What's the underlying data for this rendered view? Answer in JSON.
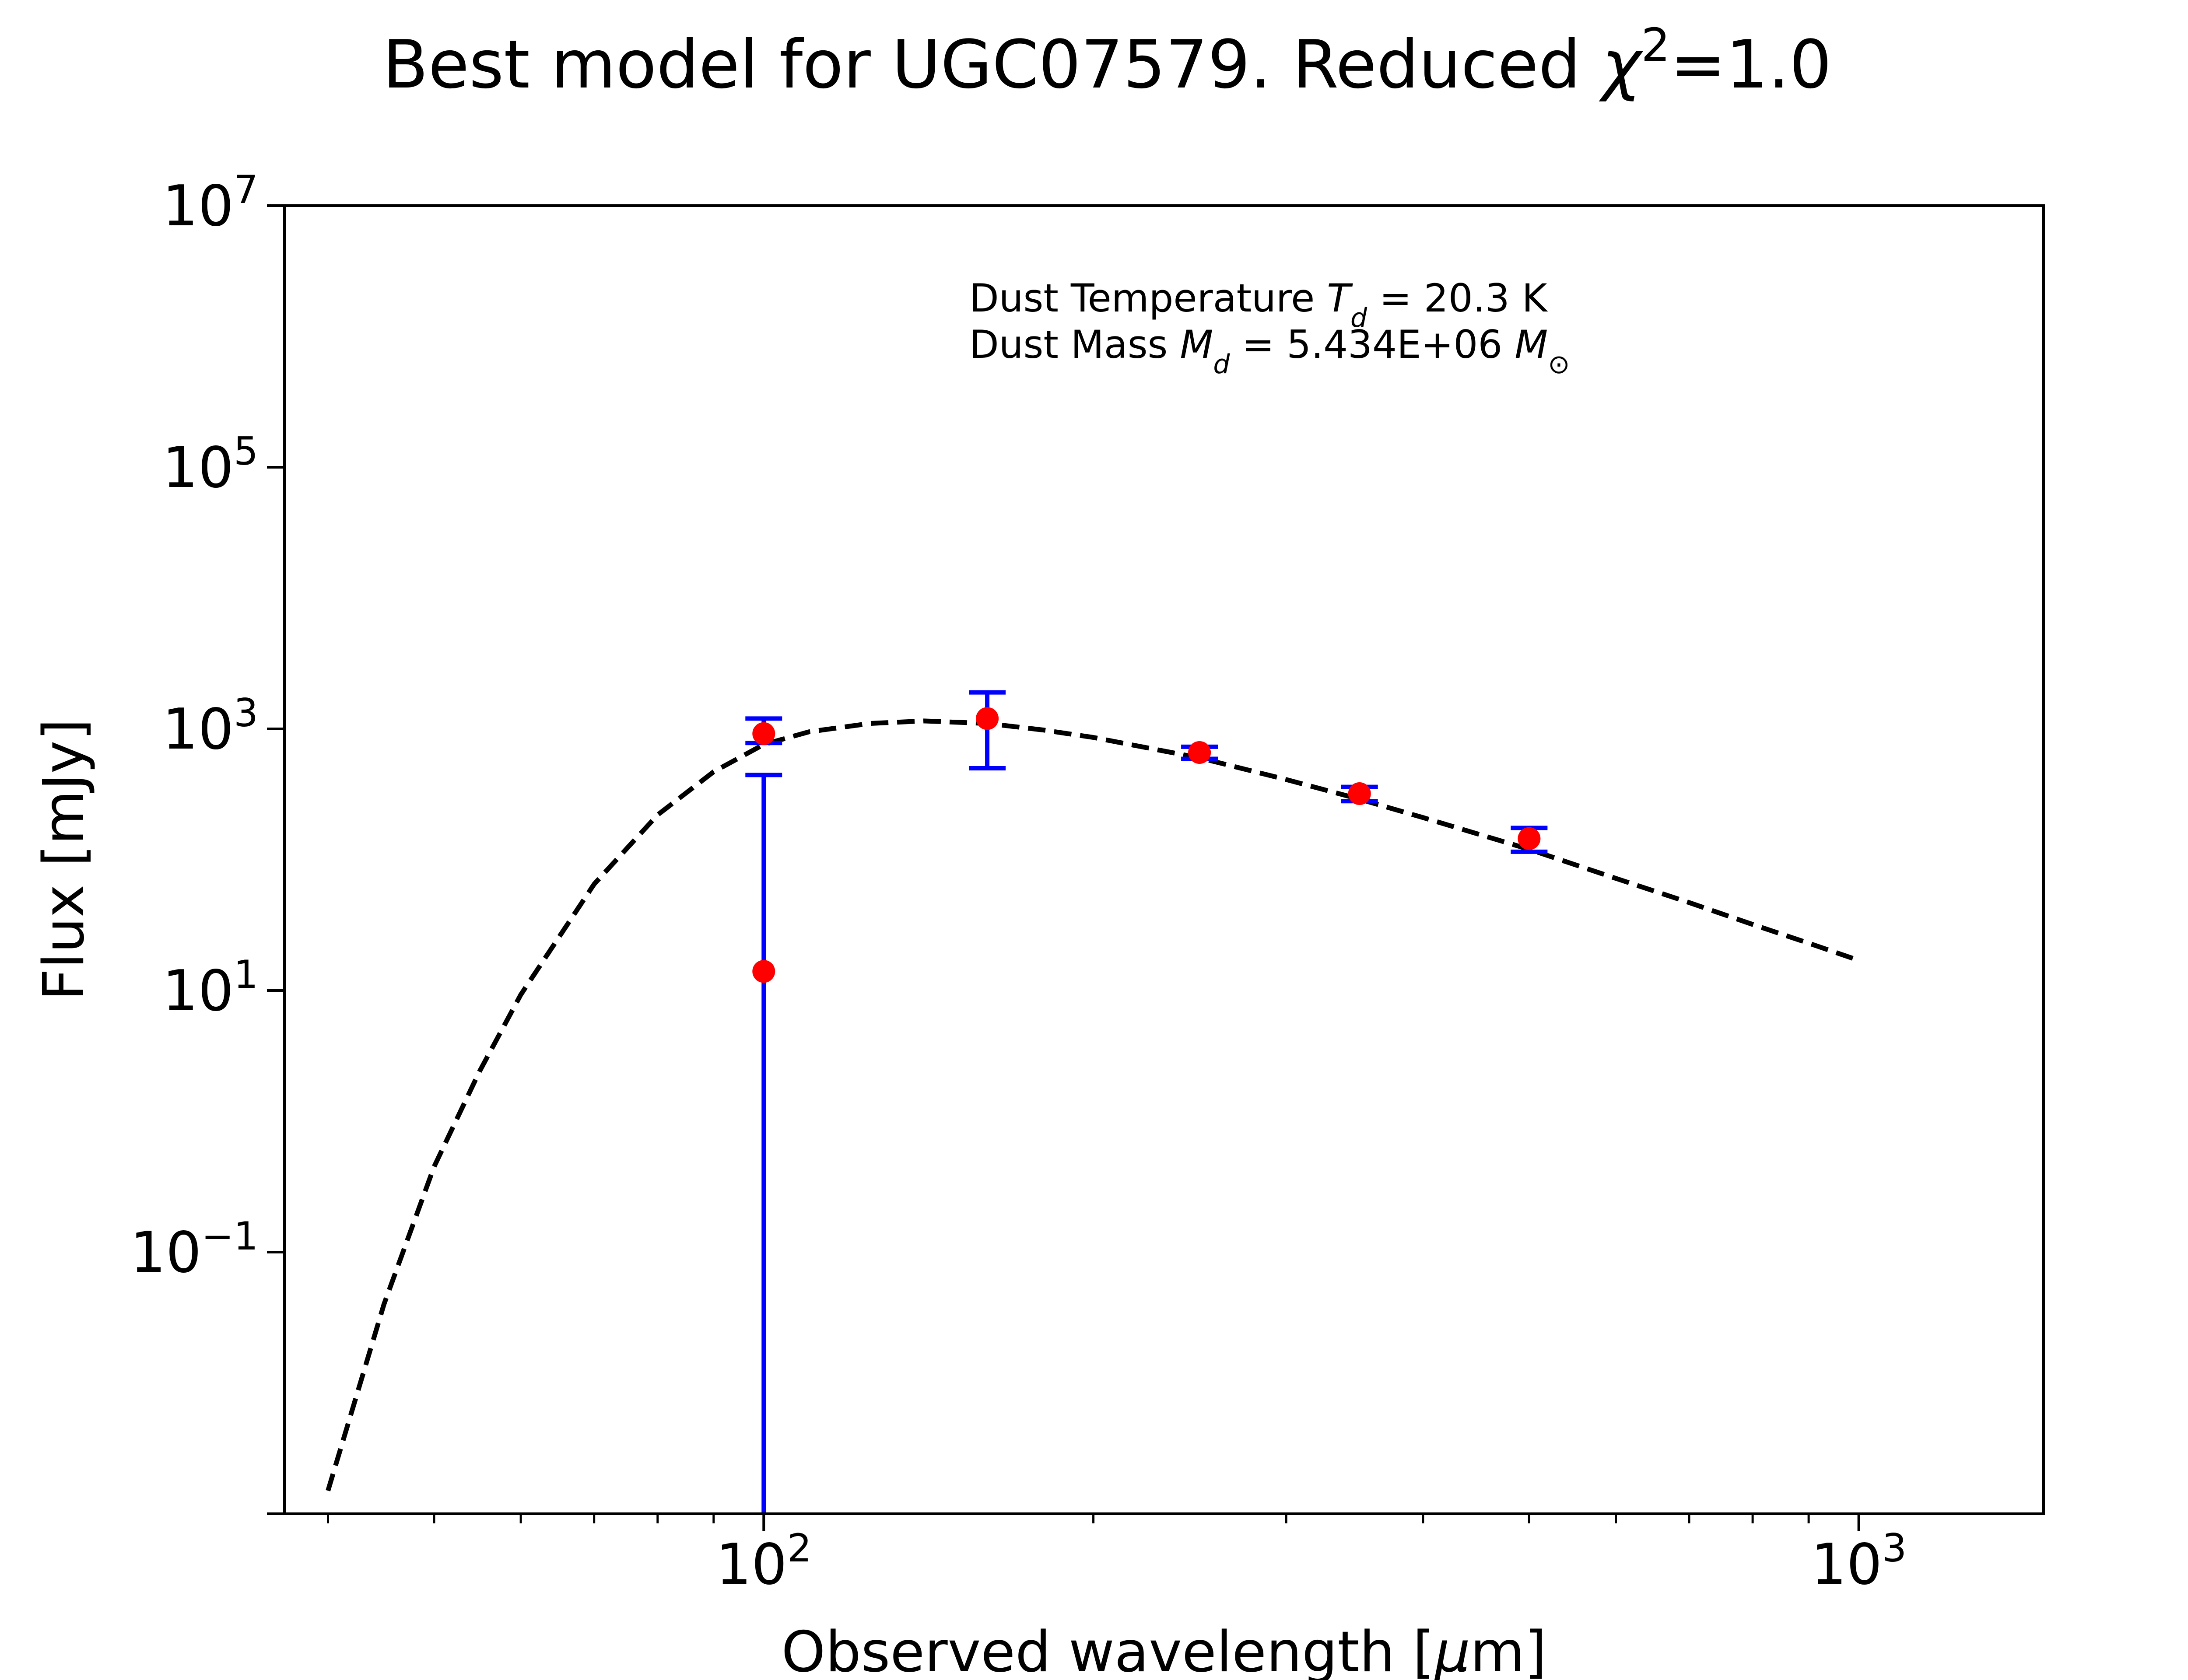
{
  "chart_data": {
    "type": "scatter",
    "title_text": "Best model for UGC07579. Reduced ",
    "title_chi": "χ",
    "title_exp": "2",
    "title_value": "=1.0",
    "xlabel_text": "Observed wavelength [",
    "xlabel_mu": "μ",
    "xlabel_unit": "m]",
    "ylabel": "Flux [mJy]",
    "xscale": "log",
    "yscale": "log",
    "xlim": [
      36.5,
      1475
    ],
    "ylim": [
      0.001,
      10000000
    ],
    "x_ticks": [
      {
        "base": "10",
        "exp": "2",
        "value": 100
      },
      {
        "base": "10",
        "exp": "3",
        "value": 1000
      }
    ],
    "y_ticks": [
      {
        "base": "10",
        "exp": "−1",
        "value": 0.1
      },
      {
        "base": "10",
        "exp": "1",
        "value": 10
      },
      {
        "base": "10",
        "exp": "3",
        "value": 1000
      },
      {
        "base": "10",
        "exp": "5",
        "value": 100000
      },
      {
        "base": "10",
        "exp": "7",
        "value": 10000000
      }
    ],
    "grid": false,
    "annotation": {
      "line1_text": "Dust Temperature ",
      "line1_sym": "T",
      "line1_sub": "d",
      "line1_value": " = 20.3 K",
      "line2_text": "Dust Mass ",
      "line2_sym": "M",
      "line2_sub": "d",
      "line2_value": " = 5.434E+06 ",
      "line2_unit": "M",
      "line2_unit_sub": "⊙"
    },
    "model": {
      "style": "dashed",
      "color": "#000000",
      "x": [
        40,
        45,
        50,
        55,
        60,
        70,
        80,
        90,
        100,
        110,
        125,
        140,
        160,
        180,
        200,
        250,
        300,
        350,
        400,
        500,
        600,
        700,
        800,
        900,
        1000
      ],
      "y": [
        0.0015,
        0.04,
        0.45,
        2.4,
        9.3,
        65,
        220,
        470,
        760,
        950,
        1100,
        1150,
        1100,
        980,
        860,
        600,
        410,
        290,
        210,
        120,
        72,
        47,
        32,
        23,
        17
      ]
    },
    "observations": {
      "marker_color": "#ff0000",
      "errorbar_color": "#0000ff",
      "points": [
        {
          "x": 100,
          "y": 14,
          "yerr_low": 14,
          "yerr_high": 430
        },
        {
          "x": 100,
          "y": 920,
          "yerr_low": 140,
          "yerr_high": 280
        },
        {
          "x": 160,
          "y": 1200,
          "yerr_low": 700,
          "yerr_high": 700
        },
        {
          "x": 250,
          "y": 660,
          "yerr_low": 70,
          "yerr_high": 70
        },
        {
          "x": 350,
          "y": 320,
          "yerr_low": 40,
          "yerr_high": 40
        },
        {
          "x": 500,
          "y": 145,
          "yerr_low": 30,
          "yerr_high": 30
        }
      ]
    }
  }
}
